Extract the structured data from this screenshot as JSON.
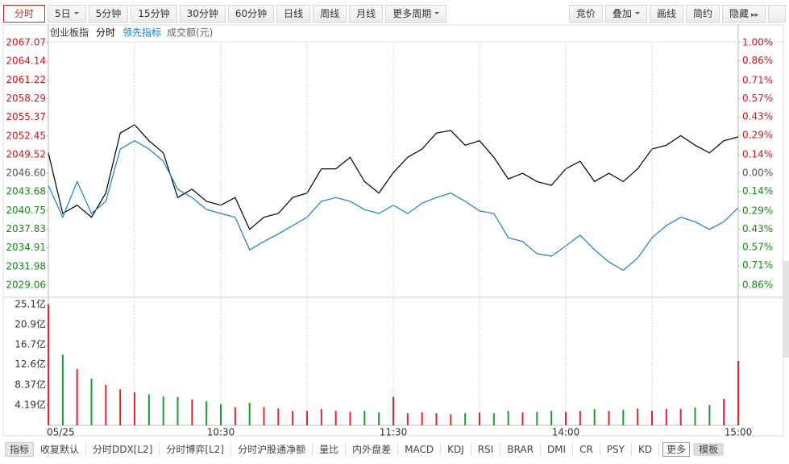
{
  "toolbar": {
    "left": [
      "分时",
      "5日",
      "5分钟",
      "15分钟",
      "30分钟",
      "60分钟",
      "日线",
      "周线",
      "月线",
      "更多周期"
    ],
    "right": [
      "竞价",
      "叠加",
      "画线",
      "简约",
      "隐藏"
    ]
  },
  "chart_data": [
    {
      "type": "line",
      "title": "创业板指",
      "x": [
        0,
        5,
        10,
        15,
        20,
        25,
        30,
        35,
        40,
        45,
        50,
        55,
        60,
        65,
        70,
        75,
        80,
        85,
        90,
        95,
        100,
        105,
        110,
        115,
        120,
        125,
        130,
        135,
        140,
        145,
        150,
        155,
        160,
        165,
        170,
        175,
        180,
        185,
        190,
        195,
        200,
        205,
        210,
        215,
        220,
        225,
        230,
        235,
        240
      ],
      "series": [
        {
          "name": "分时",
          "color": "#000000",
          "values": [
            2049.8,
            2040.3,
            2041.6,
            2039.7,
            2043.5,
            2052.9,
            2054.2,
            2051.7,
            2049.8,
            2042.8,
            2044.1,
            2042.2,
            2041.6,
            2042.8,
            2037.8,
            2039.7,
            2040.3,
            2042.8,
            2043.5,
            2047.3,
            2047.3,
            2049.1,
            2045.3,
            2043.5,
            2046.7,
            2049.1,
            2050.4,
            2052.9,
            2053.3,
            2051.0,
            2051.7,
            2049.1,
            2045.7,
            2046.6,
            2045.3,
            2044.7,
            2047.3,
            2048.5,
            2045.3,
            2046.6,
            2045.3,
            2047.3,
            2050.4,
            2051.0,
            2052.5,
            2051.0,
            2049.8,
            2051.7,
            2052.3
          ]
        },
        {
          "name": "领先指标",
          "color": "#1f7dc4",
          "values": [
            2044.7,
            2039.7,
            2045.3,
            2040.3,
            2042.2,
            2050.4,
            2051.7,
            2050.4,
            2048.5,
            2044.1,
            2042.8,
            2040.9,
            2040.3,
            2039.7,
            2034.6,
            2035.9,
            2037.1,
            2038.4,
            2039.7,
            2042.2,
            2042.8,
            2042.2,
            2040.9,
            2040.3,
            2041.6,
            2040.3,
            2041.9,
            2042.8,
            2043.5,
            2042.2,
            2040.7,
            2040.3,
            2036.5,
            2035.9,
            2034.0,
            2033.6,
            2035.2,
            2036.9,
            2034.6,
            2032.7,
            2031.4,
            2033.3,
            2036.5,
            2038.4,
            2039.7,
            2039.0,
            2037.8,
            2039.0,
            2041.2
          ]
        }
      ],
      "xlim": [
        0,
        240
      ],
      "ylim": [
        2029.06,
        2067.07
      ],
      "yticks": [
        2067.07,
        2064.14,
        2061.22,
        2058.29,
        2055.37,
        2052.45,
        2049.52,
        {
          "value": 2046.6,
          "label": "2046.60"
        },
        2043.68,
        2040.75,
        2037.83,
        2034.91,
        2031.98,
        2029.06
      ],
      "y2lim": [
        -0.86,
        1.0
      ],
      "y2ticks": [
        {
          "value": 1.0,
          "label": "1.00%"
        },
        {
          "value": 0.86,
          "label": "0.86%"
        },
        {
          "value": 0.71,
          "label": "0.71%"
        },
        {
          "value": 0.57,
          "label": "0.57%"
        },
        {
          "value": 0.43,
          "label": "0.43%"
        },
        {
          "value": 0.29,
          "label": "0.29%"
        },
        {
          "value": 0.14,
          "label": "0.14%"
        },
        {
          "value": 0.0,
          "label": "0.00%"
        },
        {
          "value": -0.14,
          "label": "0.14%"
        },
        {
          "value": -0.29,
          "label": "0.29%"
        },
        {
          "value": -0.43,
          "label": "0.43%"
        },
        {
          "value": -0.57,
          "label": "0.57%"
        },
        {
          "value": -0.71,
          "label": "0.71%"
        },
        {
          "value": -0.86,
          "label": "0.86%"
        }
      ]
    },
    {
      "type": "bar",
      "title": "成交额(元)",
      "x": [
        0,
        5,
        10,
        15,
        20,
        25,
        30,
        35,
        40,
        45,
        50,
        55,
        60,
        65,
        70,
        75,
        80,
        85,
        90,
        95,
        100,
        105,
        110,
        115,
        120,
        125,
        130,
        135,
        140,
        145,
        150,
        155,
        160,
        165,
        170,
        175,
        180,
        185,
        190,
        195,
        200,
        205,
        210,
        215,
        220,
        225,
        230,
        235,
        240
      ],
      "values": [
        25.1,
        14.7,
        11.7,
        9.7,
        8.4,
        7.5,
        6.9,
        6.4,
        6.0,
        5.9,
        5.4,
        5.0,
        4.4,
        3.8,
        4.7,
        3.8,
        3.5,
        3.0,
        3.0,
        3.4,
        3.0,
        2.8,
        3.0,
        2.7,
        5.9,
        2.5,
        2.7,
        2.5,
        2.3,
        2.5,
        2.7,
        2.5,
        3.0,
        2.7,
        2.8,
        3.0,
        2.8,
        3.0,
        3.4,
        3.0,
        3.2,
        3.5,
        3.0,
        3.4,
        3.4,
        3.7,
        4.2,
        5.5,
        13.4
      ],
      "up_color": "#e0262a",
      "down_color": "#1e9a32",
      "xlim": [
        0,
        240
      ],
      "ylim": [
        0,
        25.1
      ],
      "yticks": [
        {
          "value": 25.1,
          "label": "25.1亿"
        },
        {
          "value": 20.9,
          "label": "20.9亿"
        },
        {
          "value": 16.7,
          "label": "16.7亿"
        },
        {
          "value": 12.6,
          "label": "12.6亿"
        },
        {
          "value": 8.37,
          "label": "8.37亿"
        },
        {
          "value": 4.19,
          "label": "4.19亿"
        }
      ],
      "xticks": [
        {
          "value": 0,
          "label": "05/25"
        },
        {
          "value": 30,
          "label": null
        },
        {
          "value": 60,
          "label": "10:30"
        },
        {
          "value": 90,
          "label": null
        },
        {
          "value": 120,
          "label": "11:30"
        },
        {
          "value": 150,
          "label": null
        },
        {
          "value": 180,
          "label": "14:00"
        },
        {
          "value": 210,
          "label": null
        },
        {
          "value": 240,
          "label": "15:00"
        }
      ]
    }
  ],
  "bottom_tabs": [
    "指标",
    "收复默认",
    "分时DDX[L2]",
    "分时博弈[L2]",
    "分时沪股通净额",
    "量比",
    "内外盘差",
    "MACD",
    "KDJ",
    "RSI",
    "BRAR",
    "DMI",
    "CR",
    "PSY",
    "KD",
    "更多",
    "模板"
  ]
}
